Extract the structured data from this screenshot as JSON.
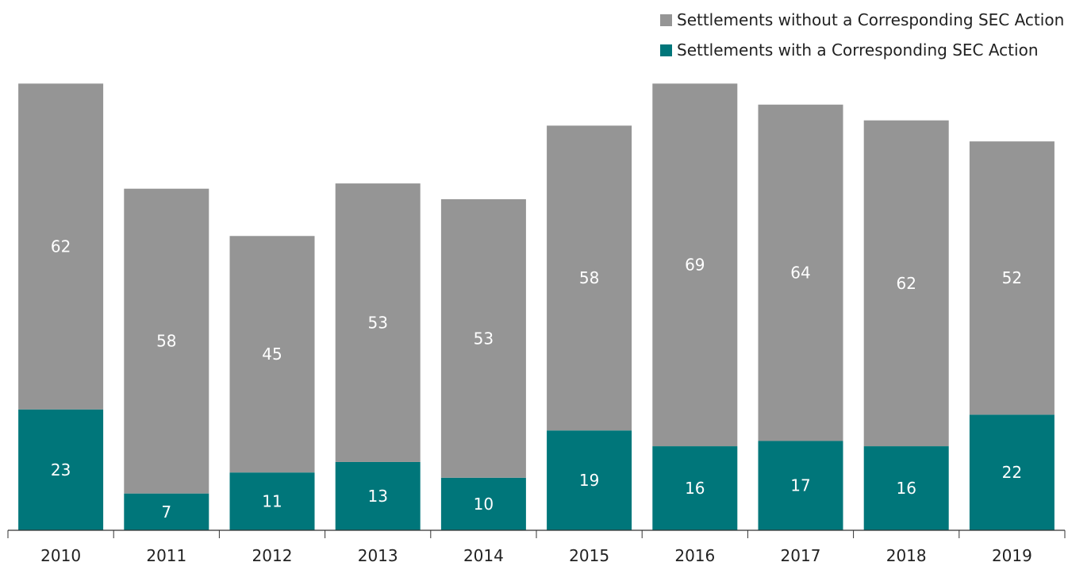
{
  "chart_data": {
    "type": "bar",
    "stacked": true,
    "categories": [
      "2010",
      "2011",
      "2012",
      "2013",
      "2014",
      "2015",
      "2016",
      "2017",
      "2018",
      "2019"
    ],
    "series": [
      {
        "name": "Settlements with a Corresponding SEC Action",
        "color": "#00767a",
        "values": [
          23,
          7,
          11,
          13,
          10,
          19,
          16,
          17,
          16,
          22
        ]
      },
      {
        "name": "Settlements without a Corresponding SEC Action",
        "color": "#959595",
        "values": [
          62,
          58,
          45,
          53,
          53,
          58,
          69,
          64,
          62,
          52
        ]
      }
    ],
    "data_labels": true,
    "legend_position": "top-right",
    "grid": false
  }
}
